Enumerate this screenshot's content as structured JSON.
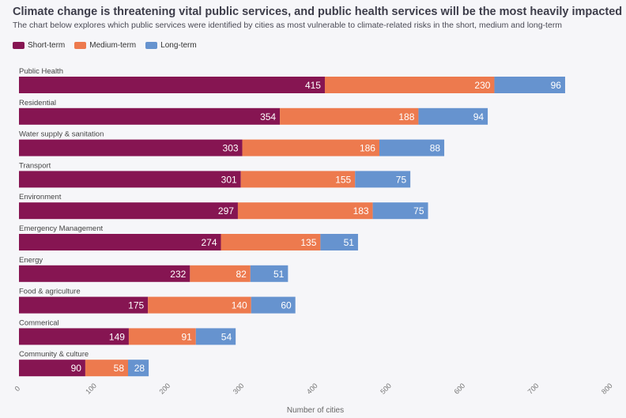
{
  "title": "Climate change is threatening vital public services, and public health services will be the most heavily impacted",
  "subtitle": "The chart below explores which public services were identified by cities as most vulnerable to climate-related risks in the short, medium and long-term",
  "colors": {
    "short": "#861552",
    "medium": "#ed7a4e",
    "long": "#6693cf"
  },
  "legend": [
    {
      "label": "Short-term",
      "color": "#861552"
    },
    {
      "label": "Medium-term",
      "color": "#ed7a4e"
    },
    {
      "label": "Long-term",
      "color": "#6693cf"
    }
  ],
  "chart_data": {
    "type": "bar",
    "orientation": "horizontal",
    "stacked": true,
    "title": "Climate change is threatening vital public services, and public health services will be the most heavily impacted",
    "xlabel": "Number of cities",
    "ylabel": "",
    "xlim": [
      0,
      800
    ],
    "xticks": [
      0,
      100,
      200,
      300,
      400,
      500,
      600,
      700,
      800
    ],
    "categories": [
      "Public Health",
      "Residential",
      "Water supply & sanitation",
      "Transport",
      "Environment",
      "Emergency Management",
      "Energy",
      "Food & agriculture",
      "Commerical",
      "Community & culture"
    ],
    "series": [
      {
        "name": "Short-term",
        "color": "#861552",
        "values": [
          415,
          354,
          303,
          301,
          297,
          274,
          232,
          175,
          149,
          90
        ]
      },
      {
        "name": "Medium-term",
        "color": "#ed7a4e",
        "values": [
          230,
          188,
          186,
          155,
          183,
          135,
          82,
          140,
          91,
          58
        ]
      },
      {
        "name": "Long-term",
        "color": "#6693cf",
        "values": [
          96,
          94,
          88,
          75,
          75,
          51,
          51,
          60,
          54,
          28
        ]
      }
    ]
  }
}
